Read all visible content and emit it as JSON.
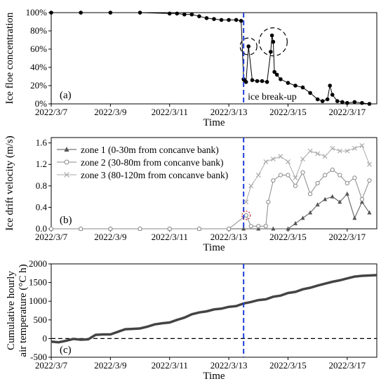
{
  "chart_data": [
    {
      "type": "line",
      "panel_label": "(a)",
      "ylabel": "Ice floe concentration",
      "xlabel": "Time",
      "x_ticks": [
        "2022/3/7",
        "2022/3/9",
        "2022/3/11",
        "2022/3/13",
        "2022/3/15",
        "2022/3/17"
      ],
      "y_ticks": [
        "0%",
        "20%",
        "40%",
        "60%",
        "80%",
        "100%"
      ],
      "xlim": [
        "2022-03-07",
        "2022-03-18"
      ],
      "ylim": [
        0,
        100
      ],
      "annotation": "ice break-up",
      "event_line_x": "2022-03-13T12:00",
      "highlights": [
        {
          "x": "2022-03-13T16:00",
          "y": 63
        },
        {
          "x": "2022-03-14T12:00",
          "y": 68
        }
      ],
      "series": [
        {
          "name": "",
          "x": [
            "2022-03-07T00:00",
            "2022-03-08T00:00",
            "2022-03-09T00:00",
            "2022-03-10T00:00",
            "2022-03-11T00:00",
            "2022-03-11T06:00",
            "2022-03-11T12:00",
            "2022-03-11T18:00",
            "2022-03-12T00:00",
            "2022-03-12T06:00",
            "2022-03-12T12:00",
            "2022-03-12T18:00",
            "2022-03-13T00:00",
            "2022-03-13T06:00",
            "2022-03-13T10:00",
            "2022-03-13T12:00",
            "2022-03-13T12:30",
            "2022-03-13T14:00",
            "2022-03-13T16:00",
            "2022-03-13T19:00",
            "2022-03-13T23:00",
            "2022-03-14T03:00",
            "2022-03-14T07:00",
            "2022-03-14T10:00",
            "2022-03-14T11:00",
            "2022-03-14T12:00",
            "2022-03-14T13:00",
            "2022-03-14T15:00",
            "2022-03-14T18:00",
            "2022-03-15T00:00",
            "2022-03-15T06:00",
            "2022-03-15T12:00",
            "2022-03-15T18:00",
            "2022-03-16T00:00",
            "2022-03-16T04:00",
            "2022-03-16T08:00",
            "2022-03-16T10:00",
            "2022-03-16T12:00",
            "2022-03-16T16:00",
            "2022-03-16T20:00",
            "2022-03-17T00:00",
            "2022-03-17T06:00",
            "2022-03-17T12:00",
            "2022-03-17T18:00"
          ],
          "y": [
            100,
            100,
            100,
            100,
            99,
            99,
            98,
            98,
            96,
            94,
            93,
            92,
            92,
            92,
            91,
            27,
            26,
            24,
            63,
            26,
            25,
            25,
            24,
            57,
            75,
            68,
            35,
            32,
            27,
            23,
            20,
            18,
            12,
            5,
            3,
            5,
            20,
            10,
            3,
            2,
            1,
            2,
            1,
            0
          ]
        }
      ]
    },
    {
      "type": "line",
      "panel_label": "(b)",
      "ylabel": "Ice drift velocity (m/s)",
      "xlabel": "Time",
      "x_ticks": [
        "2022/3/7",
        "2022/3/9",
        "2022/3/11",
        "2022/3/13",
        "2022/3/15",
        "2022/3/17"
      ],
      "y_ticks": [
        "0.0",
        "0.4",
        "0.8",
        "1.2",
        "1.6"
      ],
      "xlim": [
        "2022-03-07",
        "2022-03-18"
      ],
      "ylim": [
        0,
        1.7
      ],
      "event_line_x": "2022-03-13T12:00",
      "highlights": [
        {
          "x": "2022-03-13T14:00",
          "y": 0.25
        }
      ],
      "legend_position": "top-left",
      "series": [
        {
          "name": "zone 1 (0-30m from concanve bank)",
          "color": "#555555",
          "marker": "triangle",
          "x": [
            "2022-03-07T00:00",
            "2022-03-08T00:00",
            "2022-03-09T00:00",
            "2022-03-10T00:00",
            "2022-03-11T00:00",
            "2022-03-12T00:00",
            "2022-03-13T00:00",
            "2022-03-13T12:00",
            "2022-03-14T00:00",
            "2022-03-14T12:00",
            "2022-03-15T00:00",
            "2022-03-15T06:00",
            "2022-03-15T12:00",
            "2022-03-15T18:00",
            "2022-03-16T00:00",
            "2022-03-16T06:00",
            "2022-03-16T12:00",
            "2022-03-16T18:00",
            "2022-03-17T00:00",
            "2022-03-17T06:00",
            "2022-03-17T12:00",
            "2022-03-17T18:00"
          ],
          "y": [
            0,
            0,
            0,
            0,
            0,
            0,
            0,
            0,
            0,
            0,
            0,
            0.1,
            0.2,
            0.3,
            0.45,
            0.55,
            0.6,
            0.5,
            0.65,
            0.2,
            0.5,
            0.3
          ]
        },
        {
          "name": "zone 2 (30-80m from concanve bank)",
          "color": "#888888",
          "marker": "circle",
          "x": [
            "2022-03-07T00:00",
            "2022-03-08T00:00",
            "2022-03-09T00:00",
            "2022-03-10T00:00",
            "2022-03-11T00:00",
            "2022-03-12T00:00",
            "2022-03-13T00:00",
            "2022-03-13T14:00",
            "2022-03-13T18:00",
            "2022-03-14T00:00",
            "2022-03-14T06:00",
            "2022-03-14T08:00",
            "2022-03-14T12:00",
            "2022-03-14T18:00",
            "2022-03-15T00:00",
            "2022-03-15T06:00",
            "2022-03-15T12:00",
            "2022-03-15T18:00",
            "2022-03-16T00:00",
            "2022-03-16T06:00",
            "2022-03-16T12:00",
            "2022-03-16T18:00",
            "2022-03-17T00:00",
            "2022-03-17T06:00",
            "2022-03-17T12:00",
            "2022-03-17T18:00"
          ],
          "y": [
            0,
            0,
            0,
            0,
            0,
            0,
            0,
            0.25,
            0.05,
            0.05,
            0.05,
            0.5,
            0.9,
            1.0,
            1.0,
            0.8,
            1.05,
            0.65,
            0.85,
            1.0,
            1.1,
            1.0,
            0.85,
            0.95,
            0.55,
            0.9
          ]
        },
        {
          "name": "zone 3 (80-120m from concanve bank)",
          "color": "#aaaaaa",
          "marker": "cross",
          "x": [
            "2022-03-13T14:00",
            "2022-03-13T18:00",
            "2022-03-14T00:00",
            "2022-03-14T06:00",
            "2022-03-14T12:00",
            "2022-03-14T18:00",
            "2022-03-15T00:00",
            "2022-03-15T06:00",
            "2022-03-15T12:00",
            "2022-03-15T18:00",
            "2022-03-16T00:00",
            "2022-03-16T06:00",
            "2022-03-16T12:00",
            "2022-03-16T18:00",
            "2022-03-17T00:00",
            "2022-03-17T06:00",
            "2022-03-17T12:00",
            "2022-03-17T18:00"
          ],
          "y": [
            0.5,
            0.8,
            1.0,
            1.25,
            1.3,
            1.35,
            1.25,
            0.95,
            1.3,
            1.45,
            1.4,
            1.35,
            1.5,
            1.45,
            1.45,
            1.5,
            1.55,
            1.2
          ]
        }
      ]
    },
    {
      "type": "line",
      "panel_label": "(c)",
      "ylabel": "Cumulative hourly air temperature (°C h)",
      "ylabel_lines": [
        "Cumulative hourly",
        "air temperature (°C h)"
      ],
      "xlabel": "Time",
      "x_ticks": [
        "2022/3/7",
        "2022/3/9",
        "2022/3/11",
        "2022/3/13",
        "2022/3/15",
        "2022/3/17"
      ],
      "y_ticks": [
        "-500",
        "0",
        "500",
        "1000",
        "1500",
        "2000"
      ],
      "xlim": [
        "2022-03-07",
        "2022-03-18"
      ],
      "ylim": [
        -500,
        2000
      ],
      "zero_line": 0,
      "event_line_x": "2022-03-13T12:00",
      "series": [
        {
          "name": "",
          "x": [
            "2022-03-07T00:00",
            "2022-03-07T06:00",
            "2022-03-07T12:00",
            "2022-03-07T18:00",
            "2022-03-08T00:00",
            "2022-03-08T06:00",
            "2022-03-08T12:00",
            "2022-03-08T18:00",
            "2022-03-09T00:00",
            "2022-03-09T06:00",
            "2022-03-09T12:00",
            "2022-03-09T18:00",
            "2022-03-10T00:00",
            "2022-03-10T06:00",
            "2022-03-10T12:00",
            "2022-03-10T18:00",
            "2022-03-11T00:00",
            "2022-03-11T06:00",
            "2022-03-11T12:00",
            "2022-03-11T18:00",
            "2022-03-12T00:00",
            "2022-03-12T06:00",
            "2022-03-12T12:00",
            "2022-03-12T18:00",
            "2022-03-13T00:00",
            "2022-03-13T06:00",
            "2022-03-13T12:00",
            "2022-03-13T18:00",
            "2022-03-14T00:00",
            "2022-03-14T06:00",
            "2022-03-14T12:00",
            "2022-03-14T18:00",
            "2022-03-15T00:00",
            "2022-03-15T06:00",
            "2022-03-15T12:00",
            "2022-03-15T18:00",
            "2022-03-16T00:00",
            "2022-03-16T06:00",
            "2022-03-16T12:00",
            "2022-03-16T18:00",
            "2022-03-17T00:00",
            "2022-03-17T06:00",
            "2022-03-17T12:00",
            "2022-03-17T18:00",
            "2022-03-18T00:00"
          ],
          "y": [
            -80,
            -100,
            -60,
            -10,
            -30,
            -20,
            100,
            110,
            110,
            180,
            250,
            260,
            270,
            320,
            380,
            410,
            430,
            500,
            560,
            650,
            700,
            730,
            780,
            800,
            850,
            870,
            940,
            980,
            1030,
            1050,
            1120,
            1150,
            1220,
            1250,
            1320,
            1360,
            1420,
            1470,
            1520,
            1560,
            1610,
            1660,
            1680,
            1690,
            1700
          ]
        }
      ]
    }
  ]
}
